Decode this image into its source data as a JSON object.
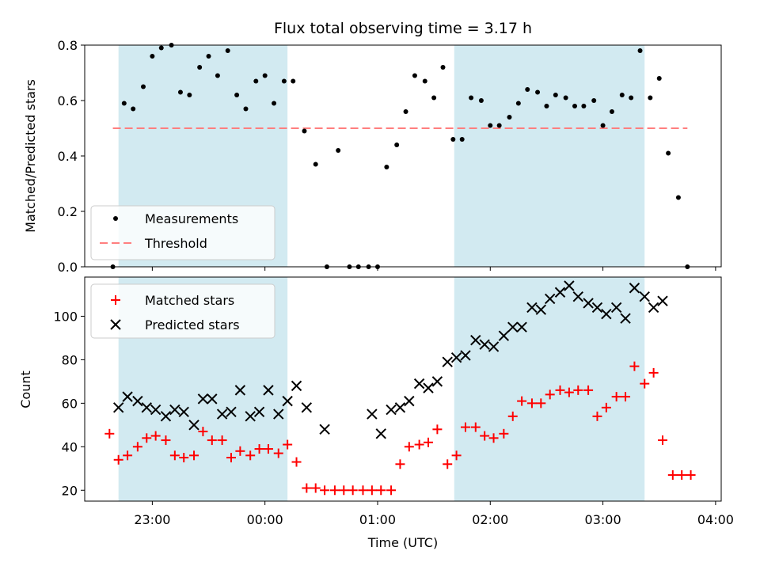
{
  "chart_data": [
    {
      "type": "scatter",
      "title": "Flux total observing time = 3.17 h",
      "xlabel": "",
      "ylabel": "Matched/Predicted stars",
      "xlim_hours": [
        22.4,
        28.05
      ],
      "ylim": [
        0,
        0.8
      ],
      "yticks": [
        0.0,
        0.2,
        0.4,
        0.6,
        0.8
      ],
      "ytick_labels": [
        "0.0",
        "0.2",
        "0.4",
        "0.6",
        "0.8"
      ],
      "grid": false,
      "legend_position": "lower-left",
      "shaded_intervals_hours": [
        [
          22.7,
          24.2
        ],
        [
          25.68,
          27.37
        ]
      ],
      "shade_color": "#add8e6",
      "threshold": {
        "name": "Threshold",
        "value": 0.5,
        "x_range_hours": [
          22.65,
          27.75
        ],
        "color": "#ff7f7f"
      },
      "series": [
        {
          "name": "Measurements",
          "color": "#000000",
          "x_hours": [
            22.65,
            22.75,
            22.83,
            22.92,
            23.0,
            23.08,
            23.17,
            23.25,
            23.33,
            23.42,
            23.5,
            23.58,
            23.67,
            23.75,
            23.83,
            23.92,
            24.0,
            24.08,
            24.17,
            24.25,
            24.35,
            24.45,
            24.55,
            24.65,
            24.75,
            24.83,
            24.92,
            25.0,
            25.08,
            25.17,
            25.25,
            25.33,
            25.42,
            25.5,
            25.58,
            25.67,
            25.75,
            25.83,
            25.92,
            26.0,
            26.08,
            26.17,
            26.25,
            26.33,
            26.42,
            26.5,
            26.58,
            26.67,
            26.75,
            26.83,
            26.92,
            27.0,
            27.08,
            27.17,
            27.25,
            27.33,
            27.42,
            27.5,
            27.58,
            27.67,
            27.75
          ],
          "values": [
            0.0,
            0.59,
            0.57,
            0.65,
            0.76,
            0.79,
            0.8,
            0.63,
            0.62,
            0.72,
            0.76,
            0.69,
            0.78,
            0.62,
            0.57,
            0.67,
            0.69,
            0.59,
            0.67,
            0.67,
            0.49,
            0.37,
            0.0,
            0.42,
            0.0,
            0.0,
            0.0,
            0.0,
            0.36,
            0.44,
            0.56,
            0.69,
            0.67,
            0.61,
            0.72,
            0.46,
            0.46,
            0.61,
            0.6,
            0.51,
            0.51,
            0.54,
            0.59,
            0.64,
            0.63,
            0.58,
            0.62,
            0.61,
            0.58,
            0.58,
            0.6,
            0.51,
            0.56,
            0.62,
            0.61,
            0.78,
            0.61,
            0.68,
            0.41,
            0.25,
            0.0
          ]
        }
      ]
    },
    {
      "type": "scatter",
      "title": "",
      "xlabel": "Time (UTC)",
      "ylabel": "Count",
      "xlim_hours": [
        22.4,
        28.05
      ],
      "ylim": [
        15,
        118
      ],
      "yticks": [
        20,
        40,
        60,
        80,
        100
      ],
      "ytick_labels": [
        "20",
        "40",
        "60",
        "80",
        "100"
      ],
      "xticks_hours": [
        23,
        24,
        25,
        26,
        27,
        28
      ],
      "xtick_labels": [
        "23:00",
        "00:00",
        "01:00",
        "02:00",
        "03:00",
        "04:00"
      ],
      "grid": false,
      "legend_position": "upper-left",
      "shaded_intervals_hours": [
        [
          22.7,
          24.2
        ],
        [
          25.68,
          27.37
        ]
      ],
      "shade_color": "#add8e6",
      "series": [
        {
          "name": "Matched stars",
          "marker": "+",
          "color": "#ff0000",
          "x_hours": [
            22.62,
            22.7,
            22.78,
            22.87,
            22.95,
            23.03,
            23.12,
            23.2,
            23.28,
            23.37,
            23.45,
            23.53,
            23.62,
            23.7,
            23.78,
            23.87,
            23.95,
            24.03,
            24.12,
            24.2,
            24.28,
            24.37,
            24.45,
            24.53,
            24.62,
            24.7,
            24.78,
            24.87,
            24.95,
            25.03,
            25.12,
            25.2,
            25.28,
            25.37,
            25.45,
            25.53,
            25.62,
            25.7,
            25.78,
            25.87,
            25.95,
            26.03,
            26.12,
            26.2,
            26.28,
            26.37,
            26.45,
            26.53,
            26.62,
            26.7,
            26.78,
            26.87,
            26.95,
            27.03,
            27.12,
            27.2,
            27.28,
            27.37,
            27.45,
            27.53,
            27.62,
            27.7,
            27.78
          ],
          "values": [
            46,
            34,
            36,
            40,
            44,
            45,
            43,
            36,
            35,
            36,
            47,
            43,
            43,
            35,
            38,
            36,
            39,
            39,
            37,
            41,
            33,
            21,
            21,
            20,
            20,
            20,
            20,
            20,
            20,
            20,
            20,
            32,
            40,
            41,
            42,
            48,
            32,
            36,
            49,
            49,
            45,
            44,
            46,
            54,
            61,
            60,
            60,
            64,
            66,
            65,
            66,
            66,
            54,
            58,
            63,
            63,
            77,
            69,
            74,
            43,
            27,
            27,
            27
          ]
        },
        {
          "name": "Predicted stars",
          "marker": "x",
          "color": "#000000",
          "x_hours": [
            22.7,
            22.78,
            22.87,
            22.95,
            23.03,
            23.12,
            23.2,
            23.28,
            23.37,
            23.45,
            23.53,
            23.62,
            23.7,
            23.78,
            23.87,
            23.95,
            24.03,
            24.12,
            24.2,
            24.28,
            24.37,
            24.53,
            24.95,
            25.03,
            25.12,
            25.2,
            25.28,
            25.37,
            25.45,
            25.53,
            25.62,
            25.7,
            25.78,
            25.87,
            25.95,
            26.03,
            26.12,
            26.2,
            26.28,
            26.37,
            26.45,
            26.53,
            26.62,
            26.7,
            26.78,
            26.87,
            26.95,
            27.03,
            27.12,
            27.2,
            27.28,
            27.37,
            27.45,
            27.53
          ],
          "values": [
            58,
            63,
            61,
            58,
            57,
            54,
            57,
            56,
            50,
            62,
            62,
            55,
            56,
            66,
            54,
            56,
            66,
            55,
            61,
            68,
            58,
            48,
            55,
            46,
            57,
            58,
            61,
            69,
            67,
            70,
            79,
            81,
            82,
            89,
            87,
            86,
            91,
            95,
            95,
            104,
            103,
            108,
            111,
            114,
            109,
            106,
            104,
            101,
            104,
            99,
            113,
            109,
            104,
            107
          ]
        }
      ]
    }
  ]
}
